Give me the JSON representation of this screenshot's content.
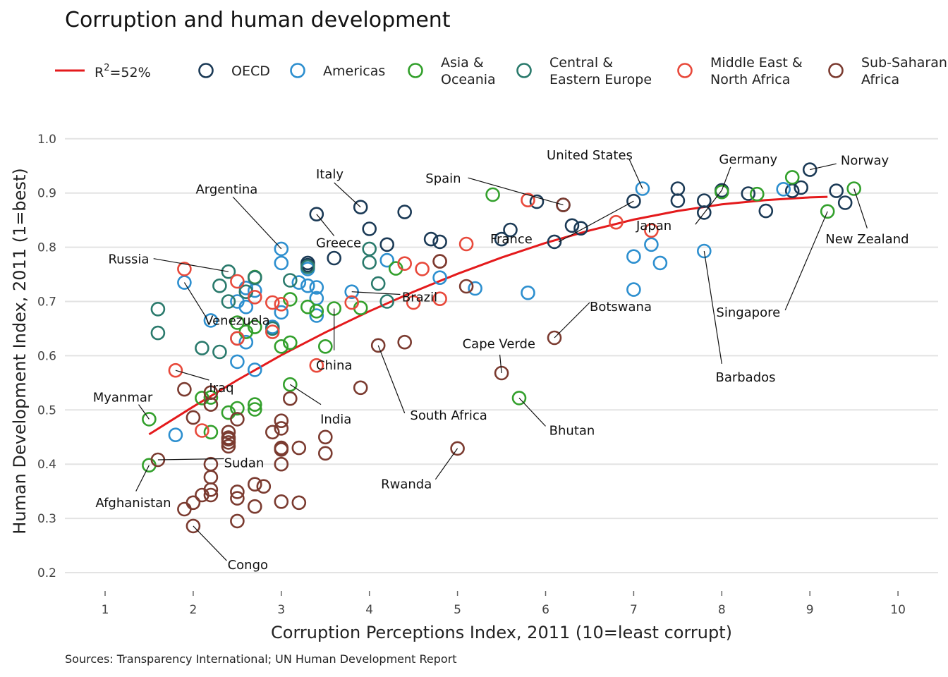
{
  "chart_data": {
    "type": "scatter",
    "title": "Corruption and human development",
    "xlabel": "Corruption Perceptions Index, 2011 (10=least corrupt)",
    "ylabel": "Human Development Index, 2011 (1=best)",
    "source": "Sources: Transparency International; UN Human Development Report",
    "xlim": [
      0.5,
      10.4
    ],
    "ylim": [
      0.2,
      1.0
    ],
    "x_ticks": [
      "1",
      "2",
      "3",
      "4",
      "5",
      "6",
      "7",
      "8",
      "9",
      "10"
    ],
    "y_ticks": [
      "0.2",
      "0.3",
      "0.4",
      "0.5",
      "0.6",
      "0.7",
      "0.8",
      "0.9",
      "1.0"
    ],
    "grid": "horizontal",
    "legend_position": "top",
    "fit": {
      "label": "R",
      "label_sup": "2",
      "label_suffix": "=52%",
      "color": "#e41a1c",
      "points": [
        [
          1.5,
          0.455
        ],
        [
          2,
          0.506
        ],
        [
          2.5,
          0.555
        ],
        [
          3,
          0.601
        ],
        [
          3.5,
          0.643
        ],
        [
          4,
          0.682
        ],
        [
          4.5,
          0.718
        ],
        [
          5,
          0.751
        ],
        [
          5.5,
          0.781
        ],
        [
          6,
          0.808
        ],
        [
          6.5,
          0.831
        ],
        [
          7,
          0.851
        ],
        [
          7.5,
          0.867
        ],
        [
          8,
          0.879
        ],
        [
          8.5,
          0.887
        ],
        [
          9,
          0.892
        ],
        [
          9.2,
          0.893
        ]
      ]
    },
    "series": [
      {
        "name": "OECD",
        "color": "#1b3a56",
        "points": [
          [
            3.9,
            0.874
          ],
          [
            4.4,
            0.865
          ],
          [
            4.0,
            0.834
          ],
          [
            4.2,
            0.805
          ],
          [
            3.4,
            0.861
          ],
          [
            3.6,
            0.78
          ],
          [
            4.7,
            0.815
          ],
          [
            4.8,
            0.81
          ],
          [
            5.9,
            0.884
          ],
          [
            6.2,
            0.878
          ],
          [
            6.1,
            0.81
          ],
          [
            6.3,
            0.84
          ],
          [
            6.4,
            0.835
          ],
          [
            5.6,
            0.832
          ],
          [
            5.5,
            0.815
          ],
          [
            7.0,
            0.885
          ],
          [
            7.5,
            0.908
          ],
          [
            7.5,
            0.886
          ],
          [
            7.8,
            0.886
          ],
          [
            7.8,
            0.864
          ],
          [
            8.0,
            0.905
          ],
          [
            8.3,
            0.899
          ],
          [
            8.5,
            0.867
          ],
          [
            8.8,
            0.904
          ],
          [
            8.9,
            0.91
          ],
          [
            9.0,
            0.943
          ],
          [
            9.3,
            0.904
          ],
          [
            9.4,
            0.882
          ],
          [
            3.3,
            0.771
          ],
          [
            3.3,
            0.767
          ]
        ]
      },
      {
        "name": "Americas",
        "color": "#2d8fcf",
        "points": [
          [
            3.0,
            0.797
          ],
          [
            3.0,
            0.771
          ],
          [
            3.3,
            0.76
          ],
          [
            3.2,
            0.735
          ],
          [
            3.3,
            0.729
          ],
          [
            3.4,
            0.726
          ],
          [
            3.4,
            0.706
          ],
          [
            3.8,
            0.718
          ],
          [
            4.2,
            0.776
          ],
          [
            4.8,
            0.744
          ],
          [
            5.2,
            0.724
          ],
          [
            5.8,
            0.716
          ],
          [
            7.1,
            0.908
          ],
          [
            7.0,
            0.783
          ],
          [
            7.0,
            0.722
          ],
          [
            7.2,
            0.805
          ],
          [
            7.3,
            0.771
          ],
          [
            7.8,
            0.793
          ],
          [
            8.7,
            0.907
          ],
          [
            3.0,
            0.68
          ],
          [
            2.9,
            0.653
          ],
          [
            2.7,
            0.72
          ],
          [
            2.6,
            0.69
          ],
          [
            2.5,
            0.632
          ],
          [
            2.6,
            0.625
          ],
          [
            2.5,
            0.589
          ],
          [
            2.7,
            0.574
          ],
          [
            2.2,
            0.665
          ],
          [
            1.9,
            0.735
          ],
          [
            1.8,
            0.454
          ],
          [
            2.5,
            0.7
          ],
          [
            3.4,
            0.674
          ],
          [
            2.6,
            0.725
          ]
        ]
      },
      {
        "name": "Asia & Oceania",
        "color": "#33a02c",
        "points": [
          [
            1.5,
            0.483
          ],
          [
            1.5,
            0.398
          ],
          [
            2.1,
            0.522
          ],
          [
            2.2,
            0.523
          ],
          [
            2.2,
            0.459
          ],
          [
            2.4,
            0.495
          ],
          [
            2.5,
            0.503
          ],
          [
            2.7,
            0.501
          ],
          [
            2.7,
            0.51
          ],
          [
            2.5,
            0.661
          ],
          [
            2.6,
            0.644
          ],
          [
            2.7,
            0.653
          ],
          [
            2.7,
            0.745
          ],
          [
            3.0,
            0.617
          ],
          [
            3.1,
            0.624
          ],
          [
            3.1,
            0.704
          ],
          [
            3.3,
            0.69
          ],
          [
            3.4,
            0.682
          ],
          [
            3.5,
            0.617
          ],
          [
            3.6,
            0.687
          ],
          [
            3.9,
            0.688
          ],
          [
            3.1,
            0.547
          ],
          [
            4.3,
            0.761
          ],
          [
            5.4,
            0.897
          ],
          [
            5.7,
            0.522
          ],
          [
            8.0,
            0.902
          ],
          [
            8.4,
            0.898
          ],
          [
            8.8,
            0.929
          ],
          [
            9.2,
            0.866
          ],
          [
            9.5,
            0.908
          ]
        ]
      },
      {
        "name": "Central & Eastern Europe",
        "color": "#2a7a6c",
        "points": [
          [
            1.6,
            0.686
          ],
          [
            1.6,
            0.642
          ],
          [
            2.1,
            0.614
          ],
          [
            2.3,
            0.729
          ],
          [
            2.3,
            0.607
          ],
          [
            2.4,
            0.755
          ],
          [
            2.4,
            0.7
          ],
          [
            2.6,
            0.718
          ],
          [
            2.7,
            0.744
          ],
          [
            2.9,
            0.65
          ],
          [
            3.1,
            0.739
          ],
          [
            3.3,
            0.764
          ],
          [
            4.0,
            0.797
          ],
          [
            4.0,
            0.772
          ],
          [
            4.1,
            0.733
          ],
          [
            4.2,
            0.7
          ]
        ]
      },
      {
        "name": "Middle East & North Africa",
        "color": "#e8493b",
        "points": [
          [
            1.8,
            0.573
          ],
          [
            1.9,
            0.76
          ],
          [
            2.1,
            0.462
          ],
          [
            2.5,
            0.737
          ],
          [
            2.5,
            0.632
          ],
          [
            2.7,
            0.708
          ],
          [
            2.9,
            0.698
          ],
          [
            2.9,
            0.644
          ],
          [
            3.0,
            0.695
          ],
          [
            3.4,
            0.582
          ],
          [
            3.8,
            0.698
          ],
          [
            4.4,
            0.77
          ],
          [
            4.5,
            0.698
          ],
          [
            4.6,
            0.76
          ],
          [
            4.8,
            0.705
          ],
          [
            4.8,
            0.774
          ],
          [
            5.1,
            0.806
          ],
          [
            5.8,
            0.887
          ],
          [
            6.8,
            0.846
          ],
          [
            7.2,
            0.831
          ]
        ]
      },
      {
        "name": "Sub-Saharan Africa",
        "color": "#7b3b30",
        "points": [
          [
            1.6,
            0.408
          ],
          [
            1.9,
            0.538
          ],
          [
            2.0,
            0.486
          ],
          [
            1.9,
            0.317
          ],
          [
            2.0,
            0.329
          ],
          [
            2.0,
            0.286
          ],
          [
            2.1,
            0.343
          ],
          [
            2.2,
            0.4
          ],
          [
            2.2,
            0.376
          ],
          [
            2.2,
            0.353
          ],
          [
            2.2,
            0.343
          ],
          [
            2.2,
            0.51
          ],
          [
            2.2,
            0.532
          ],
          [
            2.4,
            0.459
          ],
          [
            2.4,
            0.449
          ],
          [
            2.4,
            0.44
          ],
          [
            2.4,
            0.433
          ],
          [
            2.4,
            0.446
          ],
          [
            2.5,
            0.483
          ],
          [
            2.5,
            0.349
          ],
          [
            2.5,
            0.337
          ],
          [
            2.5,
            0.295
          ],
          [
            2.7,
            0.363
          ],
          [
            2.7,
            0.322
          ],
          [
            2.8,
            0.359
          ],
          [
            2.9,
            0.459
          ],
          [
            3.0,
            0.48
          ],
          [
            3.0,
            0.466
          ],
          [
            3.0,
            0.43
          ],
          [
            3.0,
            0.427
          ],
          [
            3.0,
            0.4
          ],
          [
            3.0,
            0.331
          ],
          [
            3.1,
            0.521
          ],
          [
            3.2,
            0.43
          ],
          [
            3.2,
            0.329
          ],
          [
            3.5,
            0.45
          ],
          [
            3.5,
            0.42
          ],
          [
            3.9,
            0.541
          ],
          [
            4.1,
            0.619
          ],
          [
            4.4,
            0.625
          ],
          [
            4.8,
            0.774
          ],
          [
            5.0,
            0.429
          ],
          [
            5.1,
            0.728
          ],
          [
            5.5,
            0.568
          ],
          [
            6.1,
            0.633
          ],
          [
            6.2,
            0.878
          ]
        ]
      }
    ],
    "annotations": [
      {
        "label": "Norway",
        "point": [
          9.0,
          0.943
        ],
        "text": [
          9.35,
          0.96
        ],
        "anchor": "start",
        "elbow": [
          9.3,
          0.954
        ]
      },
      {
        "label": "United States",
        "point": [
          7.1,
          0.908
        ],
        "text": [
          6.5,
          0.97
        ],
        "anchor": "middle",
        "elbow": [
          6.95,
          0.962
        ]
      },
      {
        "label": "Germany",
        "point": [
          8.0,
          0.905
        ],
        "text": [
          8.3,
          0.962
        ],
        "anchor": "middle",
        "elbow": [
          8.1,
          0.948
        ]
      },
      {
        "label": "Spain",
        "point": [
          6.2,
          0.878
        ],
        "text": [
          5.04,
          0.927
        ],
        "anchor": "end",
        "elbow": [
          5.12,
          0.928
        ]
      },
      {
        "label": "Italy",
        "point": [
          3.9,
          0.874
        ],
        "text": [
          3.55,
          0.935
        ],
        "anchor": "middle",
        "elbow": [
          3.6,
          0.919
        ]
      },
      {
        "label": "Argentina",
        "point": [
          3.0,
          0.797
        ],
        "text": [
          2.38,
          0.907
        ],
        "anchor": "middle",
        "elbow": [
          2.45,
          0.893
        ]
      },
      {
        "label": "Japan",
        "point": [
          8.0,
          0.905
        ],
        "text": [
          7.23,
          0.84
        ],
        "anchor": "middle",
        "elbow": [
          7.7,
          0.842
        ]
      },
      {
        "label": "Greece",
        "point": [
          3.4,
          0.861
        ],
        "text": [
          3.65,
          0.808
        ],
        "anchor": "middle",
        "elbow": [
          3.6,
          0.821
        ]
      },
      {
        "label": "France",
        "point": [
          7.0,
          0.885
        ],
        "text": [
          5.85,
          0.815
        ],
        "anchor": "end",
        "elbow": [
          6.15,
          0.81
        ]
      },
      {
        "label": "New Zealand",
        "point": [
          9.5,
          0.908
        ],
        "text": [
          9.65,
          0.815
        ],
        "anchor": "middle",
        "elbow": [
          9.65,
          0.835
        ]
      },
      {
        "label": "Russia",
        "point": [
          2.4,
          0.755
        ],
        "text": [
          1.5,
          0.778
        ],
        "anchor": "end",
        "elbow": [
          1.55,
          0.779
        ]
      },
      {
        "label": "Brazil",
        "point": [
          3.8,
          0.718
        ],
        "text": [
          4.37,
          0.708
        ],
        "anchor": "start",
        "elbow": [
          4.35,
          0.713
        ]
      },
      {
        "label": "Venezuela",
        "point": [
          1.9,
          0.735
        ],
        "text": [
          2.5,
          0.665
        ],
        "anchor": "middle",
        "elbow": [
          2.15,
          0.67
        ]
      },
      {
        "label": "Singapore",
        "point": [
          9.2,
          0.866
        ],
        "text": [
          8.3,
          0.68
        ],
        "anchor": "middle",
        "elbow": [
          8.72,
          0.684
        ]
      },
      {
        "label": "Botswana",
        "point": [
          6.1,
          0.633
        ],
        "text": [
          6.5,
          0.69
        ],
        "anchor": "start",
        "elbow": [
          6.5,
          0.698
        ]
      },
      {
        "label": "Cape Verde",
        "point": [
          5.5,
          0.568
        ],
        "text": [
          5.47,
          0.622
        ],
        "anchor": "middle",
        "elbow": [
          5.48,
          0.602
        ]
      },
      {
        "label": "China",
        "point": [
          3.6,
          0.687
        ],
        "text": [
          3.6,
          0.582
        ],
        "anchor": "middle",
        "elbow": [
          3.6,
          0.61
        ]
      },
      {
        "label": "Barbados",
        "point": [
          7.8,
          0.793
        ],
        "text": [
          8.27,
          0.56
        ],
        "anchor": "middle",
        "elbow": [
          8.0,
          0.585
        ]
      },
      {
        "label": "Iraq",
        "point": [
          1.8,
          0.573
        ],
        "text": [
          2.18,
          0.541
        ],
        "anchor": "start",
        "elbow": [
          2.18,
          0.555
        ]
      },
      {
        "label": "Myanmar",
        "point": [
          1.5,
          0.483
        ],
        "text": [
          1.2,
          0.523
        ],
        "anchor": "middle",
        "elbow": [
          1.38,
          0.51
        ]
      },
      {
        "label": "India",
        "point": [
          3.1,
          0.547
        ],
        "text": [
          3.62,
          0.483
        ],
        "anchor": "middle",
        "elbow": [
          3.45,
          0.51
        ]
      },
      {
        "label": "South Africa",
        "point": [
          4.1,
          0.619
        ],
        "text": [
          4.9,
          0.49
        ],
        "anchor": "middle",
        "elbow": [
          4.4,
          0.494
        ]
      },
      {
        "label": "Bhutan",
        "point": [
          5.7,
          0.522
        ],
        "text": [
          6.3,
          0.462
        ],
        "anchor": "middle",
        "elbow": [
          6.0,
          0.47
        ]
      },
      {
        "label": "Sudan",
        "point": [
          1.6,
          0.408
        ],
        "text": [
          2.35,
          0.402
        ],
        "anchor": "start",
        "elbow": [
          2.35,
          0.41
        ]
      },
      {
        "label": "Rwanda",
        "point": [
          5.0,
          0.429
        ],
        "text": [
          4.42,
          0.363
        ],
        "anchor": "middle",
        "elbow": [
          4.75,
          0.372
        ]
      },
      {
        "label": "Afghanistan",
        "point": [
          1.5,
          0.398
        ],
        "text": [
          1.32,
          0.329
        ],
        "anchor": "middle",
        "elbow": [
          1.35,
          0.35
        ]
      },
      {
        "label": "Congo",
        "point": [
          2.0,
          0.286
        ],
        "text": [
          2.62,
          0.214
        ],
        "anchor": "middle",
        "elbow": [
          2.38,
          0.222
        ]
      }
    ]
  }
}
